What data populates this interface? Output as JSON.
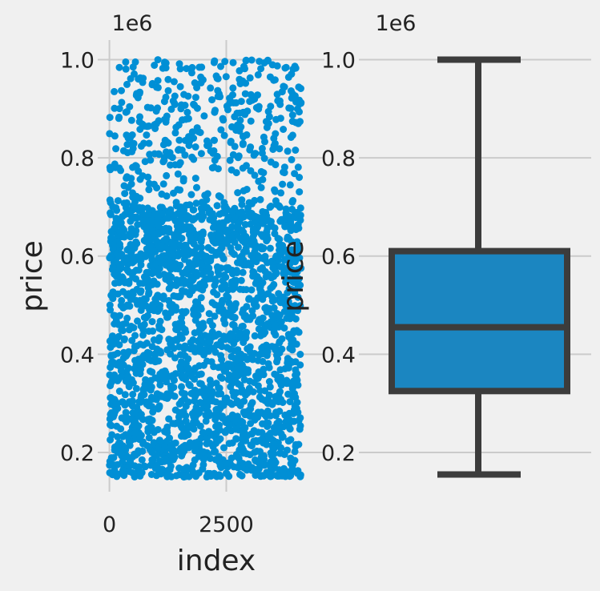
{
  "chart_data": [
    {
      "type": "scatter",
      "xlabel": "index",
      "ylabel": "price",
      "offset_label": "1e6",
      "xlim": [
        -250,
        4600
      ],
      "ylim": [
        0.12,
        1.04
      ],
      "x_ticks": [
        0,
        2500
      ],
      "x_tick_labels": [
        "0",
        "2500"
      ],
      "y_ticks": [
        0.2,
        0.4,
        0.6,
        0.8,
        1.0
      ],
      "y_tick_labels": [
        "0.2",
        "0.4",
        "0.6",
        "0.8",
        "1.0"
      ],
      "grid": true,
      "point_color": "#008fd5",
      "n_points": 2600,
      "x_range": [
        0,
        4100
      ],
      "y_range": [
        0.15,
        1.0
      ]
    },
    {
      "type": "box",
      "ylabel": "price",
      "offset_label": "1e6",
      "ylim": [
        0.12,
        1.04
      ],
      "y_ticks": [
        0.2,
        0.4,
        0.6,
        0.8,
        1.0
      ],
      "y_tick_labels": [
        "0.2",
        "0.4",
        "0.6",
        "0.8",
        "1.0"
      ],
      "grid": true,
      "box_color": "#1b86c1",
      "edge_color": "#3c3c3c",
      "whisker_low": 0.155,
      "q1": 0.325,
      "median": 0.455,
      "q3": 0.61,
      "whisker_high": 1.0
    }
  ],
  "colors": {
    "background": "#f0f0f0",
    "grid": "#cbcbcb"
  }
}
